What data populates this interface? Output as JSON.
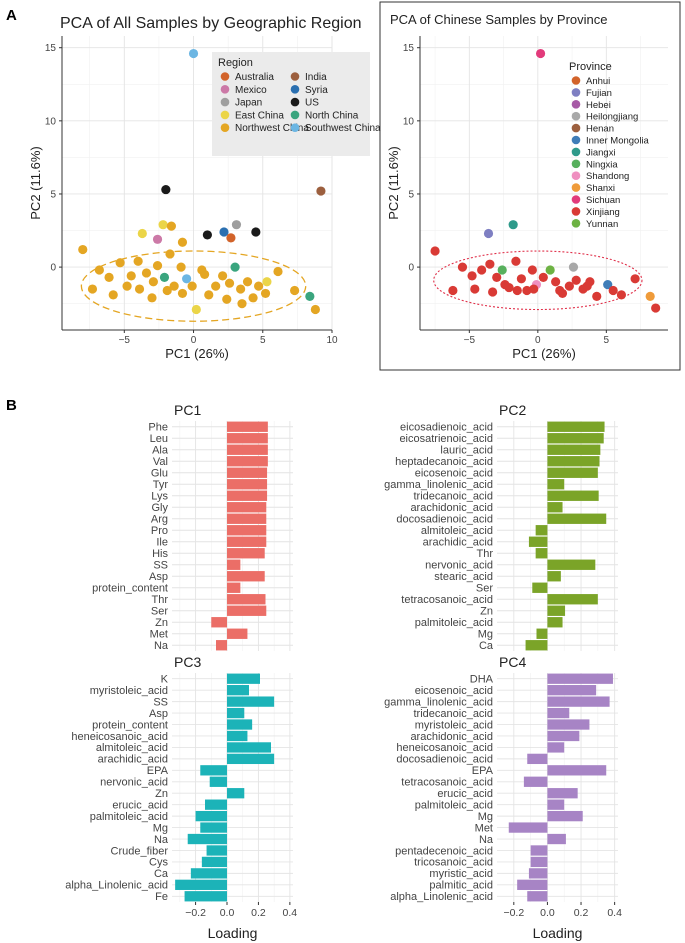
{
  "panel_labels": {
    "a": "A",
    "b": "B"
  },
  "chart_data": [
    {
      "type": "scatter",
      "title": "PCA of All Samples by Geographic Region",
      "xlabel": "PC1 (26%)",
      "ylabel": "PC2 (11.6%)",
      "xlim": [
        -9.5,
        10
      ],
      "ylim": [
        -4.3,
        15.8
      ],
      "xticks": [
        -5,
        0,
        5,
        10
      ],
      "yticks": [
        0,
        5,
        10,
        15
      ],
      "legend_title": "Region",
      "legend": [
        {
          "label": "Australia",
          "color": "#d2632a"
        },
        {
          "label": "India",
          "color": "#9c5f3e"
        },
        {
          "label": "Mexico",
          "color": "#cc79a7"
        },
        {
          "label": "Syria",
          "color": "#2a6fb0"
        },
        {
          "label": "Japan",
          "color": "#9e9e9e"
        },
        {
          "label": "US",
          "color": "#1a1a1a"
        },
        {
          "label": "East China",
          "color": "#ebd548"
        },
        {
          "label": "North China",
          "color": "#3aa57e"
        },
        {
          "label": "Northwest China",
          "color": "#e4a623"
        },
        {
          "label": "Southwest China",
          "color": "#6cb6e3"
        }
      ],
      "ellipse": {
        "center": [
          0,
          -1.3
        ],
        "semi_axes": [
          8.1,
          2.4
        ],
        "color": "#e4a623"
      },
      "points": [
        {
          "x": 0,
          "y": 14.6,
          "c": "#6cb6e3"
        },
        {
          "x": 9.2,
          "y": 5.2,
          "c": "#9c5f3e"
        },
        {
          "x": -2,
          "y": 5.3,
          "c": "#1a1a1a"
        },
        {
          "x": -2.2,
          "y": 2.9,
          "c": "#ebd548"
        },
        {
          "x": -3.7,
          "y": 2.3,
          "c": "#ebd548"
        },
        {
          "x": -2.6,
          "y": 1.9,
          "c": "#cc79a7"
        },
        {
          "x": -1.6,
          "y": 2.8,
          "c": "#e4a623"
        },
        {
          "x": -0.8,
          "y": 1.7,
          "c": "#e4a623"
        },
        {
          "x": 1,
          "y": 2.2,
          "c": "#1a1a1a"
        },
        {
          "x": 2.2,
          "y": 2.4,
          "c": "#2a6fb0"
        },
        {
          "x": 3.1,
          "y": 2.9,
          "c": "#9e9e9e"
        },
        {
          "x": 2.7,
          "y": 2.0,
          "c": "#d2632a"
        },
        {
          "x": 4.5,
          "y": 2.4,
          "c": "#1a1a1a"
        },
        {
          "x": -8,
          "y": 1.2,
          "c": "#e4a623"
        },
        {
          "x": -6.8,
          "y": -0.2,
          "c": "#e4a623"
        },
        {
          "x": -6.1,
          "y": -0.7,
          "c": "#e4a623"
        },
        {
          "x": -7.3,
          "y": -1.5,
          "c": "#e4a623"
        },
        {
          "x": -5.3,
          "y": 0.3,
          "c": "#e4a623"
        },
        {
          "x": -4.5,
          "y": -0.6,
          "c": "#e4a623"
        },
        {
          "x": -4.0,
          "y": 0.4,
          "c": "#e4a623"
        },
        {
          "x": -3.4,
          "y": -0.4,
          "c": "#e4a623"
        },
        {
          "x": -2.9,
          "y": -1.0,
          "c": "#e4a623"
        },
        {
          "x": -2.6,
          "y": 0.1,
          "c": "#e4a623"
        },
        {
          "x": -2.1,
          "y": -0.7,
          "c": "#3aa57e"
        },
        {
          "x": -1.7,
          "y": 0.9,
          "c": "#e4a623"
        },
        {
          "x": -1.4,
          "y": -1.3,
          "c": "#e4a623"
        },
        {
          "x": -0.9,
          "y": 0.0,
          "c": "#e4a623"
        },
        {
          "x": -0.5,
          "y": -0.8,
          "c": "#6cb6e3"
        },
        {
          "x": -0.1,
          "y": -1.3,
          "c": "#e4a623"
        },
        {
          "x": 0.2,
          "y": -2.9,
          "c": "#ebd548"
        },
        {
          "x": 0.6,
          "y": -0.2,
          "c": "#e4a623"
        },
        {
          "x": 1.1,
          "y": -1.9,
          "c": "#e4a623"
        },
        {
          "x": 1.6,
          "y": -1.3,
          "c": "#e4a623"
        },
        {
          "x": 2.1,
          "y": -0.6,
          "c": "#e4a623"
        },
        {
          "x": 2.6,
          "y": -1.1,
          "c": "#e4a623"
        },
        {
          "x": 3.0,
          "y": 0.0,
          "c": "#3aa57e"
        },
        {
          "x": 3.4,
          "y": -1.5,
          "c": "#e4a623"
        },
        {
          "x": 3.9,
          "y": -1.0,
          "c": "#e4a623"
        },
        {
          "x": 4.3,
          "y": -2.1,
          "c": "#e4a623"
        },
        {
          "x": 4.7,
          "y": -1.3,
          "c": "#e4a623"
        },
        {
          "x": 5.2,
          "y": -1.8,
          "c": "#e4a623"
        },
        {
          "x": 5.3,
          "y": -1.0,
          "c": "#ebd548"
        },
        {
          "x": 6.1,
          "y": -0.3,
          "c": "#e4a623"
        },
        {
          "x": 7.3,
          "y": -1.6,
          "c": "#e4a623"
        },
        {
          "x": -5.8,
          "y": -1.9,
          "c": "#e4a623"
        },
        {
          "x": -4.8,
          "y": -1.3,
          "c": "#e4a623"
        },
        {
          "x": -3.9,
          "y": -1.5,
          "c": "#e4a623"
        },
        {
          "x": -3.0,
          "y": -2.1,
          "c": "#e4a623"
        },
        {
          "x": -1.9,
          "y": -1.6,
          "c": "#e4a623"
        },
        {
          "x": -0.8,
          "y": -1.8,
          "c": "#e4a623"
        },
        {
          "x": 0.8,
          "y": -0.5,
          "c": "#e4a623"
        },
        {
          "x": 2.4,
          "y": -2.2,
          "c": "#e4a623"
        },
        {
          "x": 3.5,
          "y": -2.5,
          "c": "#e4a623"
        },
        {
          "x": 8.4,
          "y": -2.0,
          "c": "#3aa57e"
        },
        {
          "x": 8.8,
          "y": -2.9,
          "c": "#e4a623"
        }
      ]
    },
    {
      "type": "scatter",
      "title": "PCA of Chinese Samples by Province",
      "xlabel": "PC1 (26%)",
      "ylabel": "PC2 (11.6%)",
      "xlim": [
        -8.6,
        9.5
      ],
      "ylim": [
        -4.3,
        15.8
      ],
      "xticks": [
        -5,
        0,
        5
      ],
      "yticks": [
        0,
        5,
        10,
        15
      ],
      "legend_title": "Province",
      "legend": [
        {
          "label": "Anhui",
          "color": "#d2632a"
        },
        {
          "label": "Fujian",
          "color": "#7e7fc2"
        },
        {
          "label": "Hebei",
          "color": "#a75aa6"
        },
        {
          "label": "Heilongjiang",
          "color": "#a8a8a8"
        },
        {
          "label": "Henan",
          "color": "#9c5f3e"
        },
        {
          "label": "Inner Mongolia",
          "color": "#3f7db8"
        },
        {
          "label": "Jiangxi",
          "color": "#2e9a8a"
        },
        {
          "label": "Ningxia",
          "color": "#57b05d"
        },
        {
          "label": "Shandong",
          "color": "#ef8fc0"
        },
        {
          "label": "Shanxi",
          "color": "#ef9b3a"
        },
        {
          "label": "Sichuan",
          "color": "#e23b7b"
        },
        {
          "label": "Xinjiang",
          "color": "#d93a35"
        },
        {
          "label": "Yunnan",
          "color": "#6db243"
        }
      ],
      "ellipse": {
        "center": [
          0,
          -0.9
        ],
        "semi_axes": [
          7.6,
          2.0
        ],
        "color": "#e0304a"
      },
      "points": [
        {
          "x": 0.2,
          "y": 14.6,
          "c": "#e23b7b"
        },
        {
          "x": -3.6,
          "y": 2.3,
          "c": "#7e7fc2"
        },
        {
          "x": -1.8,
          "y": 2.9,
          "c": "#2e9a8a"
        },
        {
          "x": 2.6,
          "y": 0.0,
          "c": "#a8a8a8"
        },
        {
          "x": -7.5,
          "y": 1.1,
          "c": "#d93a35"
        },
        {
          "x": -5.5,
          "y": 0.0,
          "c": "#d93a35"
        },
        {
          "x": -4.8,
          "y": -0.6,
          "c": "#d93a35"
        },
        {
          "x": -4.1,
          "y": -0.2,
          "c": "#d93a35"
        },
        {
          "x": -3.5,
          "y": 0.2,
          "c": "#d93a35"
        },
        {
          "x": -3.0,
          "y": -0.7,
          "c": "#d93a35"
        },
        {
          "x": -2.6,
          "y": -0.2,
          "c": "#57b05d"
        },
        {
          "x": -2.1,
          "y": -1.4,
          "c": "#d93a35"
        },
        {
          "x": -1.6,
          "y": 0.4,
          "c": "#d93a35"
        },
        {
          "x": -1.2,
          "y": -0.8,
          "c": "#d93a35"
        },
        {
          "x": -0.8,
          "y": -1.6,
          "c": "#d93a35"
        },
        {
          "x": -0.4,
          "y": -0.2,
          "c": "#d93a35"
        },
        {
          "x": -0.1,
          "y": -1.2,
          "c": "#ef8fc0"
        },
        {
          "x": 0.4,
          "y": -0.7,
          "c": "#d93a35"
        },
        {
          "x": 0.9,
          "y": -0.2,
          "c": "#6db243"
        },
        {
          "x": 1.3,
          "y": -1.0,
          "c": "#d93a35"
        },
        {
          "x": 1.8,
          "y": -1.8,
          "c": "#d93a35"
        },
        {
          "x": 2.3,
          "y": -1.3,
          "c": "#d93a35"
        },
        {
          "x": 2.8,
          "y": -0.9,
          "c": "#d93a35"
        },
        {
          "x": 3.3,
          "y": -1.5,
          "c": "#d93a35"
        },
        {
          "x": 3.8,
          "y": -1.0,
          "c": "#d93a35"
        },
        {
          "x": 4.3,
          "y": -2.0,
          "c": "#d93a35"
        },
        {
          "x": 5.1,
          "y": -1.2,
          "c": "#3f7db8"
        },
        {
          "x": 5.5,
          "y": -1.6,
          "c": "#d93a35"
        },
        {
          "x": 7.1,
          "y": -0.8,
          "c": "#d93a35"
        },
        {
          "x": 8.2,
          "y": -2.0,
          "c": "#ef9b3a"
        },
        {
          "x": 8.6,
          "y": -2.8,
          "c": "#d93a35"
        },
        {
          "x": -6.2,
          "y": -1.6,
          "c": "#d93a35"
        },
        {
          "x": -4.6,
          "y": -1.5,
          "c": "#d93a35"
        },
        {
          "x": -3.3,
          "y": -1.7,
          "c": "#d93a35"
        },
        {
          "x": -2.4,
          "y": -1.2,
          "c": "#d93a35"
        },
        {
          "x": -1.5,
          "y": -1.6,
          "c": "#d93a35"
        },
        {
          "x": -0.3,
          "y": -1.5,
          "c": "#d93a35"
        },
        {
          "x": 1.6,
          "y": -1.6,
          "c": "#d93a35"
        },
        {
          "x": 3.6,
          "y": -1.3,
          "c": "#d93a35"
        },
        {
          "x": 6.1,
          "y": -1.9,
          "c": "#d93a35"
        }
      ]
    },
    {
      "type": "bar",
      "orientation": "horizontal",
      "title": "PC1",
      "xlabel": "",
      "color": "#eb6e67",
      "xlim": [
        -0.35,
        0.42
      ],
      "categories": [
        "Phe",
        "Leu",
        "Ala",
        "Val",
        "Glu",
        "Tyr",
        "Lys",
        "Gly",
        "Arg",
        "Pro",
        "Ile",
        "His",
        "SS",
        "Asp",
        "protein_content",
        "Thr",
        "Ser",
        "Zn",
        "Met",
        "Na"
      ],
      "values": [
        0.26,
        0.26,
        0.26,
        0.26,
        0.255,
        0.255,
        0.255,
        0.25,
        0.25,
        0.25,
        0.25,
        0.24,
        0.085,
        0.24,
        0.085,
        0.245,
        0.25,
        -0.1,
        0.13,
        -0.07
      ]
    },
    {
      "type": "bar",
      "orientation": "horizontal",
      "title": "PC2",
      "xlabel": "",
      "color": "#7ba428",
      "xlim": [
        -0.3,
        0.42
      ],
      "categories": [
        "eicosadienoic_acid",
        "eicosatrienoic_acid",
        "lauric_acid",
        "heptadecanoic_acid",
        "eicosenoic_acid",
        "gamma_linolenic_acid",
        "tridecanoic_acid",
        "arachidonic_acid",
        "docosadienoic_acid",
        "almitoleic_acid",
        "arachidic_acid",
        "Thr",
        "nervonic_acid",
        "stearic_acid",
        "Ser",
        "tetracosanoic_acid",
        "Zn",
        "palmitoleic_acid",
        "Mg",
        "Ca"
      ],
      "values": [
        0.34,
        0.335,
        0.315,
        0.31,
        0.3,
        0.1,
        0.305,
        0.09,
        0.35,
        -0.07,
        -0.11,
        -0.07,
        0.285,
        0.08,
        -0.09,
        0.3,
        0.105,
        0.09,
        -0.065,
        -0.13
      ]
    },
    {
      "type": "bar",
      "orientation": "horizontal",
      "title": "PC3",
      "xlabel": "Loading",
      "color": "#1cb3b8",
      "xlim": [
        -0.35,
        0.42
      ],
      "xticks": [
        -0.2,
        0.0,
        0.2,
        0.4
      ],
      "categories": [
        "K",
        "myristoleic_acid",
        "SS",
        "Asp",
        "protein_content",
        "heneicosanoic_acid",
        "almitoleic_acid",
        "arachidic_acid",
        "EPA",
        "nervonic_acid",
        "Zn",
        "erucic_acid",
        "palmitoleic_acid",
        "Mg",
        "Na",
        "Crude_fiber",
        "Cys",
        "Ca",
        "alpha_Linolenic_acid",
        "Fe"
      ],
      "values": [
        0.21,
        0.14,
        0.3,
        0.11,
        0.16,
        0.13,
        0.28,
        0.3,
        -0.17,
        -0.11,
        0.11,
        -0.14,
        -0.2,
        -0.17,
        -0.25,
        -0.13,
        -0.16,
        -0.23,
        -0.33,
        -0.27
      ]
    },
    {
      "type": "bar",
      "orientation": "horizontal",
      "title": "PC4",
      "xlabel": "Loading",
      "color": "#a784c5",
      "xlim": [
        -0.3,
        0.42
      ],
      "xticks": [
        -0.2,
        0.0,
        0.2,
        0.4
      ],
      "categories": [
        "DHA",
        "eicosenoic_acid",
        "gamma_linolenic_acid",
        "tridecanoic_acid",
        "myristoleic_acid",
        "arachidonic_acid",
        "heneicosanoic_acid",
        "docosadienoic_acid",
        "EPA",
        "tetracosanoic_acid",
        "erucic_acid",
        "palmitoleic_acid",
        "Mg",
        "Met",
        "Na",
        "pentadecenoic_acid",
        "tricosanoic_acid",
        "myristic_acid",
        "palmitic_acid",
        "alpha_Linolenic_acid"
      ],
      "values": [
        0.39,
        0.29,
        0.37,
        0.13,
        0.25,
        0.19,
        0.1,
        -0.12,
        0.35,
        -0.14,
        0.18,
        0.1,
        0.21,
        -0.23,
        0.11,
        -0.1,
        -0.1,
        -0.11,
        -0.18,
        -0.12
      ]
    }
  ]
}
